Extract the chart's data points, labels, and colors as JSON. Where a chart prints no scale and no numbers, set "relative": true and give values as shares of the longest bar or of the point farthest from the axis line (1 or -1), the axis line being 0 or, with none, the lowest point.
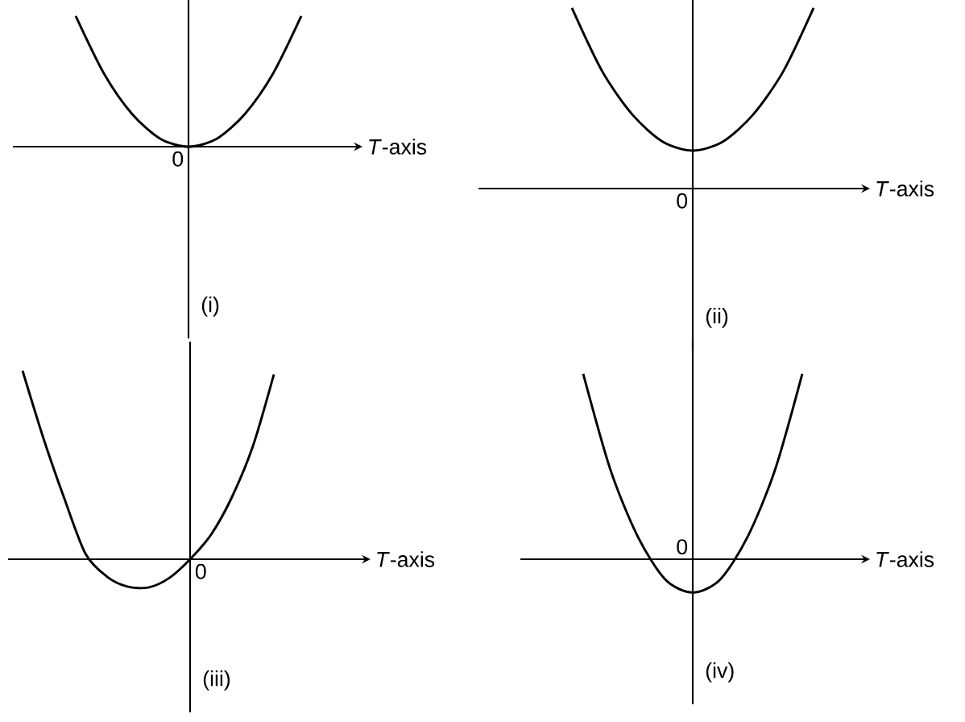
{
  "chart_data": [
    {
      "type": "line",
      "relative": true,
      "title": "(i)",
      "xlabel": "*T*-axis",
      "color": "#000000",
      "annotations": [
        "0"
      ],
      "categories": [
        null,
        null,
        null,
        null,
        null,
        null,
        null,
        null,
        null
      ],
      "values": [
        1,
        0.56,
        0.25,
        0.06,
        0,
        0.06,
        0.25,
        0.56,
        1
      ]
    },
    {
      "type": "line",
      "relative": true,
      "title": "(ii)",
      "xlabel": "*T*-axis",
      "color": "#000000",
      "annotations": [
        "0"
      ],
      "categories": [
        null,
        null,
        null,
        null,
        null,
        null,
        null,
        null,
        null
      ],
      "values": [
        1,
        0.65,
        0.41,
        0.26,
        0.21,
        0.26,
        0.41,
        0.65,
        1
      ]
    },
    {
      "type": "line",
      "relative": true,
      "title": "(iii)",
      "xlabel": "*T*-axis",
      "color": "#000000",
      "annotations": [
        "0"
      ],
      "categories": [
        null,
        null,
        null,
        null,
        null,
        null,
        null,
        null,
        null,
        null,
        null,
        null,
        null
      ],
      "values": [
        1,
        0.64,
        0.32,
        0.03,
        -0.09,
        -0.145,
        -0.15,
        -0.1,
        0,
        0.13,
        0.33,
        0.6,
        0.98
      ]
    },
    {
      "type": "line",
      "relative": true,
      "title": "(iv)",
      "xlabel": "*T*-axis",
      "color": "#000000",
      "annotations": [
        "0"
      ],
      "categories": [
        null,
        null,
        null,
        null,
        null,
        null,
        null,
        null,
        null
      ],
      "values": [
        1,
        0.48,
        0.12,
        -0.11,
        -0.18,
        -0.11,
        0.12,
        0.48,
        1
      ]
    }
  ]
}
